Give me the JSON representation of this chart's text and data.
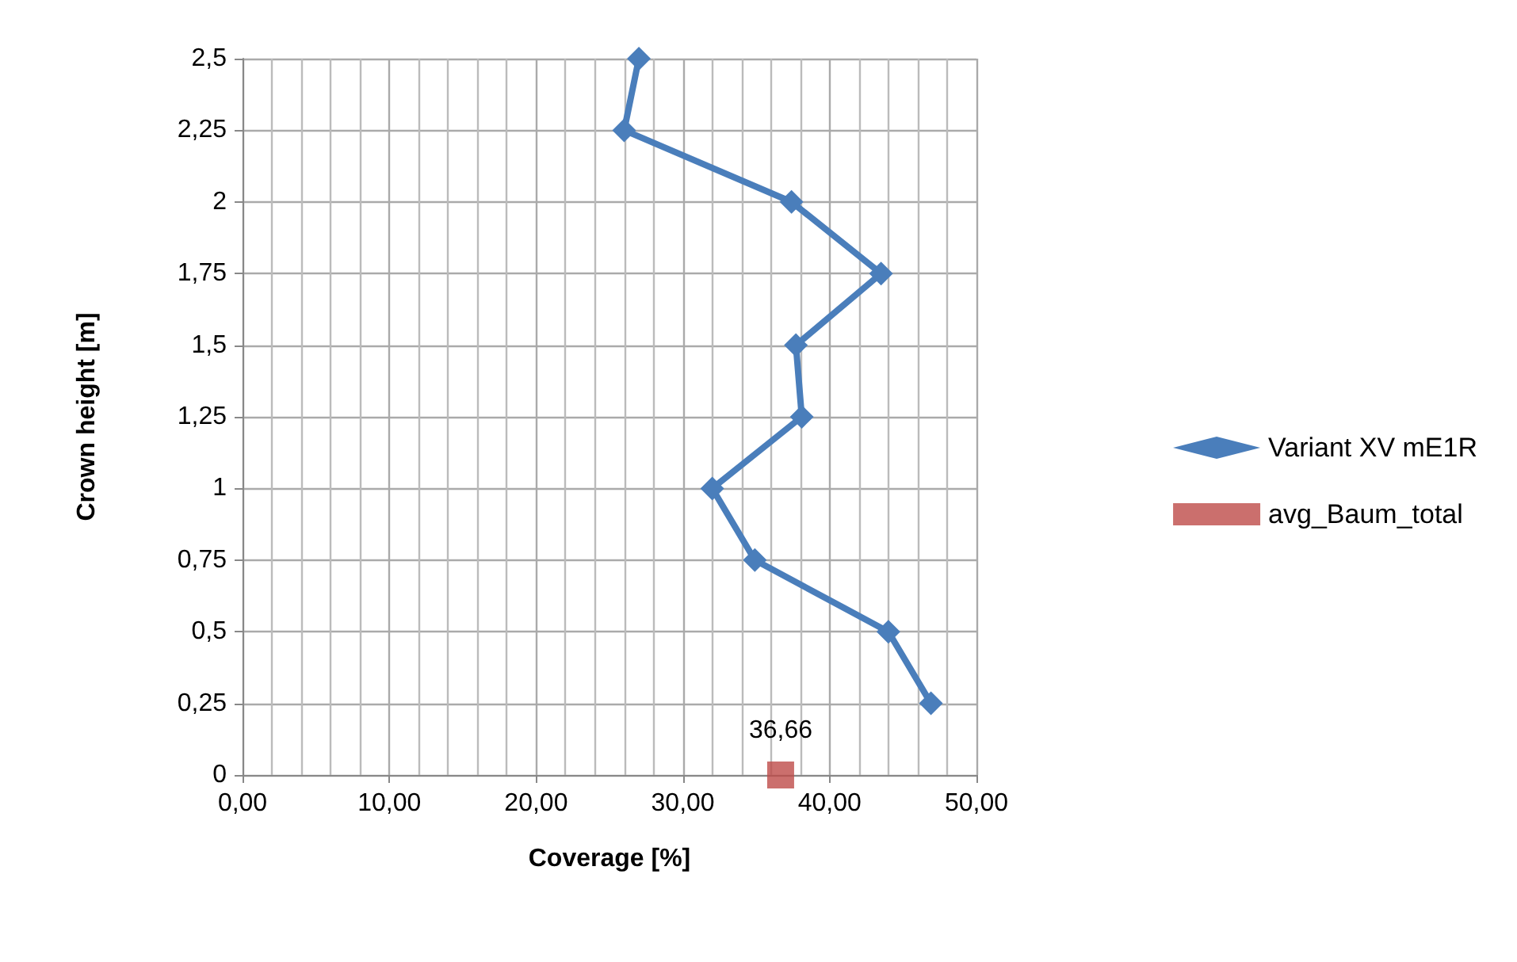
{
  "chart_data": {
    "type": "line",
    "xlabel": "Coverage [%]",
    "ylabel": "Crown height [m]",
    "xlim": [
      0,
      50
    ],
    "xticks": [
      {
        "value": 0,
        "label": "0,00"
      },
      {
        "value": 10,
        "label": "10,00"
      },
      {
        "value": 20,
        "label": "20,00"
      },
      {
        "value": 30,
        "label": "30,00"
      },
      {
        "value": 40,
        "label": "40,00"
      },
      {
        "value": 50,
        "label": "50,00"
      }
    ],
    "ylim": [
      0,
      2.5
    ],
    "yticks": [
      0,
      {
        "value": 0.25,
        "label": "0,25"
      },
      {
        "value": 0.5,
        "label": "0,5"
      },
      {
        "value": 0.75,
        "label": "0,75"
      },
      1,
      {
        "value": 1.25,
        "label": "1,25"
      },
      {
        "value": 1.5,
        "label": "1,5"
      },
      {
        "value": 1.75,
        "label": "1,75"
      },
      2,
      {
        "value": 2.25,
        "label": "2,25"
      },
      {
        "value": 2.5,
        "label": "2,5"
      }
    ],
    "grid": true,
    "legend": "right",
    "series": [
      {
        "name": "Variant XV mE1R",
        "marker": "diamond",
        "color": "#4a7ebb",
        "x": [
          46.9,
          44.0,
          34.9,
          32.0,
          38.1,
          37.7,
          43.5,
          37.4,
          26.0,
          27.0
        ],
        "values": [
          0.25,
          0.5,
          0.75,
          1,
          1.25,
          1.5,
          1.75,
          2,
          2.25,
          2.5
        ]
      },
      {
        "name": "avg_Baum_total",
        "type": "scatter",
        "marker": "square",
        "color": "#be4b48",
        "x": [
          36.66
        ],
        "values": [
          0
        ]
      }
    ],
    "annotations": [
      {
        "text": "36,66",
        "x": 36.66,
        "y": 0
      }
    ]
  }
}
